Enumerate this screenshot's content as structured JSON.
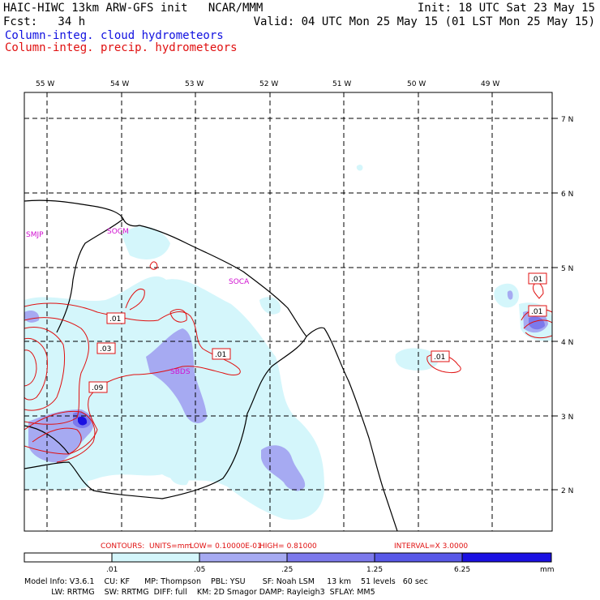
{
  "header": {
    "line1_left": "HAIC-HIWC 13km ARW-GFS init   NCAR/MMM",
    "line1_right": "Init: 18 UTC Sat 23 May 15",
    "line2_left": "Fcst:   34 h",
    "line2_right": "Valid: 04 UTC Mon 25 May 15 (01 LST Mon 25 May 15)",
    "legend_cloud": "Column-integ. cloud hydrometeors",
    "legend_precip": "Column-integ. precip. hydrometeors"
  },
  "map": {
    "lon_labels": [
      "55 W",
      "54 W",
      "53 W",
      "52 W",
      "51 W",
      "50 W",
      "49 W"
    ],
    "lat_labels": [
      "7 N",
      "6 N",
      "5 N",
      "4 N",
      "3 N",
      "2 N"
    ],
    "station_labels": [
      "SMJP",
      "SOCM",
      "SOCA",
      "SBDS"
    ],
    "contour_labels": [
      ".01",
      ".03",
      ".09",
      ".01",
      ".01",
      ".01",
      ".01"
    ]
  },
  "contour_info": {
    "contours_label": "CONTOURS:",
    "units": "UNITS=mm",
    "low": "LOW= 0.10000E-01",
    "high": "HIGH= 0.81000",
    "interval": "INTERVAL=X  3.0000"
  },
  "colorbar": {
    "ticks": [
      ".01",
      ".05",
      ".25",
      "1.25",
      "6.25"
    ],
    "unit": "mm",
    "colors": [
      "#ffffff",
      "#d4f6fb",
      "#a6aaf2",
      "#7c79ec",
      "#5858e8",
      "#1a10e2"
    ]
  },
  "model_info": {
    "line1": "Model Info: V3.6.1    CU: KF      MP: Thompson    PBL: YSU       SF: Noah LSM     13 km    51 levels   60 sec",
    "line2": "           LW: RRTMG    SW: RRTMG  DIFF: full    KM: 2D Smagor DAMP: Rayleigh3  SFLAY: MM5"
  },
  "colors": {
    "cloud_light": "#d4f6fb",
    "cloud_mid": "#a6aaf2",
    "cloud_dark": "#7c79ec",
    "cloud_max": "#1a10e2",
    "precip": "#e01010",
    "station": "#d010d0"
  }
}
